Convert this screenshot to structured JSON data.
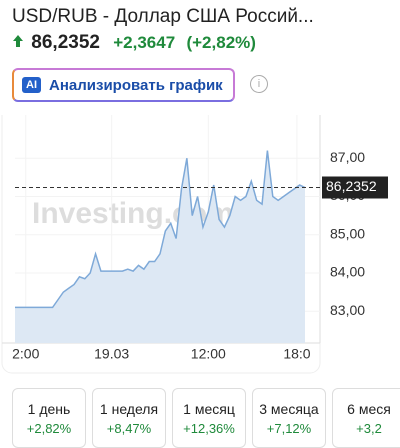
{
  "header": {
    "title": "USD/RUB - Доллар США Россий...",
    "price": "86,2352",
    "change": "+2,3647",
    "change_pct": "(+2,82%)"
  },
  "ai_button": {
    "icon": "AI",
    "label": "Анализировать график"
  },
  "chart_data": {
    "type": "area",
    "watermark": "Investing.com",
    "values": [
      83.1,
      83.1,
      83.1,
      83.1,
      83.1,
      83.1,
      83.1,
      83.1,
      83.3,
      83.5,
      83.6,
      83.7,
      83.9,
      83.85,
      84.0,
      84.5,
      84.05,
      84.05,
      84.05,
      84.05,
      84.05,
      84.1,
      84.05,
      84.2,
      84.1,
      84.3,
      84.3,
      84.5,
      85.1,
      85.3,
      84.9,
      86.2,
      87.0,
      85.5,
      86.0,
      85.2,
      85.6,
      86.3,
      85.4,
      85.2,
      85.5,
      86.0,
      85.9,
      86.0,
      86.4,
      85.9,
      85.8,
      87.2,
      86.0,
      85.9,
      86.0,
      86.1,
      86.2,
      86.3,
      86.2352
    ],
    "color": "#7ea9d8",
    "fill": "#dde8f4",
    "xlim": [
      0,
      54
    ],
    "xticks": [
      {
        "value": 2,
        "label": "2:00"
      },
      {
        "value": 18,
        "label": "19.03"
      },
      {
        "value": 36,
        "label": "12:00"
      },
      {
        "value": 52.5,
        "label": "18:0"
      }
    ],
    "ylim": [
      82.3,
      88.0
    ],
    "yticks": [
      {
        "value": 83,
        "label": "83,00"
      },
      {
        "value": 84,
        "label": "84,00"
      },
      {
        "value": 85,
        "label": "85,00"
      },
      {
        "value": 86,
        "label": "86,00"
      },
      {
        "value": 87,
        "label": "87,00"
      }
    ],
    "current": {
      "value": 86.2352,
      "label": "86,2352"
    }
  },
  "periods": [
    {
      "label": "1 день",
      "change": "+2,82%"
    },
    {
      "label": "1 неделя",
      "change": "+8,47%"
    },
    {
      "label": "1 месяц",
      "change": "+12,36%"
    },
    {
      "label": "3 месяца",
      "change": "+7,12%"
    },
    {
      "label": "6 меся",
      "change": "+3,2"
    }
  ]
}
